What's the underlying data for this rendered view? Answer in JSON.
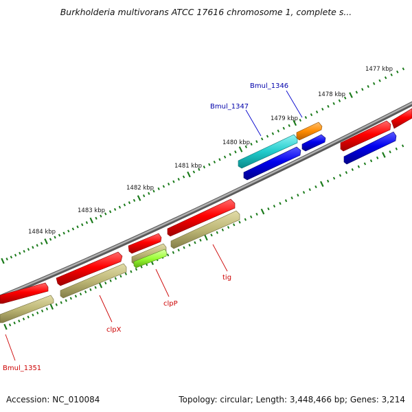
{
  "title": "Burkholderia multivorans ATCC 17616 chromosome 1, complete s...",
  "footer": {
    "accession": "Accession: NC_010084",
    "stats": "Topology: circular; Length: 3,448,466 bp; Genes: 3,214"
  },
  "scale_labels": [
    "1477 kbp",
    "1478 kbp",
    "1479 kbp",
    "1480 kbp",
    "1481 kbp",
    "1482 kbp",
    "1483 kbp",
    "1484 kbp"
  ],
  "genes": {
    "bmul_1346": "Bmul_1346",
    "bmul_1347": "Bmul_1347",
    "tig": "tig",
    "clpP": "clpP",
    "clpX": "clpX",
    "bmul_1351": "Bmul_1351"
  },
  "colors": {
    "cds_forward": "#ff0000",
    "cds_reverse": "#0000ee",
    "gene_olive": "#bdb776",
    "gene_cyan": "#22cccc",
    "gene_orange": "#ff8c00",
    "gene_lime": "#99ff33",
    "backbone": "#888888",
    "tick": "#1a7a1a",
    "label_forward": "#cc0000",
    "label_reverse": "#0000aa"
  }
}
